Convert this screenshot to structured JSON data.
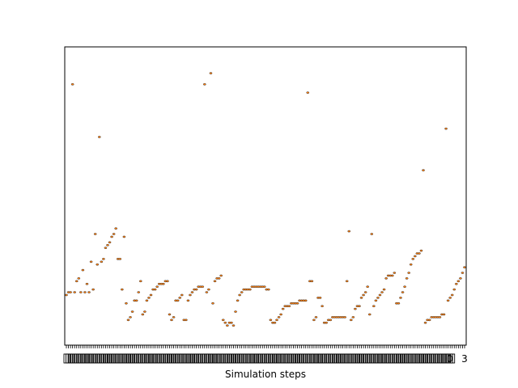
{
  "chart_data": {
    "type": "scatter",
    "title": "",
    "xlabel": "Simulation steps",
    "ylabel": "",
    "xlim": [
      0,
      200
    ],
    "ylim": [
      0,
      1
    ],
    "grid": false,
    "legend": "none",
    "marker_color": "#ff7f0e",
    "marker_edge_color": "#333333",
    "last_tick_label": "3",
    "second_last_tick_label": "0",
    "tick_label_color": "#000000",
    "series": [
      {
        "y": [
          0.14,
          0.15,
          0.15,
          0.9,
          0.15,
          0.19,
          0.2,
          0.15,
          0.23,
          0.15,
          0.18,
          0.15,
          0.26,
          0.16,
          0.36,
          0.25,
          0.71,
          0.26,
          0.27,
          0.31,
          0.32,
          0.33,
          0.35,
          0.36,
          0.38,
          0.27,
          0.27,
          0.16,
          0.35,
          0.11,
          0.05,
          0.06,
          0.08,
          0.12,
          0.12,
          0.15,
          0.19,
          0.07,
          0.08,
          0.12,
          0.13,
          0.14,
          0.16,
          0.16,
          0.17,
          0.18,
          0.18,
          0.18,
          0.19,
          0.19,
          0.07,
          0.05,
          0.06,
          0.12,
          0.12,
          0.13,
          0.14,
          0.05,
          0.05,
          0.12,
          0.14,
          0.15,
          0.16,
          0.16,
          0.17,
          0.17,
          0.17,
          0.9,
          0.15,
          0.16,
          0.94,
          0.11,
          0.19,
          0.2,
          0.2,
          0.21,
          0.05,
          0.04,
          0.03,
          0.04,
          0.04,
          0.03,
          0.08,
          0.12,
          0.14,
          0.15,
          0.16,
          0.16,
          0.16,
          0.16,
          0.17,
          0.17,
          0.17,
          0.17,
          0.17,
          0.17,
          0.17,
          0.16,
          0.16,
          0.05,
          0.04,
          0.04,
          0.05,
          0.06,
          0.07,
          0.09,
          0.1,
          0.1,
          0.1,
          0.11,
          0.11,
          0.11,
          0.11,
          0.12,
          0.12,
          0.12,
          0.12,
          0.87,
          0.19,
          0.19,
          0.05,
          0.06,
          0.13,
          0.13,
          0.1,
          0.04,
          0.04,
          0.05,
          0.05,
          0.06,
          0.06,
          0.06,
          0.06,
          0.06,
          0.06,
          0.06,
          0.19,
          0.37,
          0.05,
          0.06,
          0.09,
          0.1,
          0.1,
          0.13,
          0.14,
          0.15,
          0.17,
          0.07,
          0.36,
          0.1,
          0.12,
          0.13,
          0.14,
          0.15,
          0.16,
          0.2,
          0.21,
          0.21,
          0.21,
          0.22,
          0.11,
          0.11,
          0.13,
          0.15,
          0.17,
          0.2,
          0.22,
          0.25,
          0.27,
          0.28,
          0.29,
          0.29,
          0.3,
          0.59,
          0.04,
          0.05,
          0.05,
          0.06,
          0.06,
          0.06,
          0.06,
          0.06,
          0.07,
          0.07,
          0.74,
          0.12,
          0.13,
          0.14,
          0.16,
          0.18,
          0.19,
          0.2,
          0.22,
          0.24
        ]
      }
    ]
  }
}
